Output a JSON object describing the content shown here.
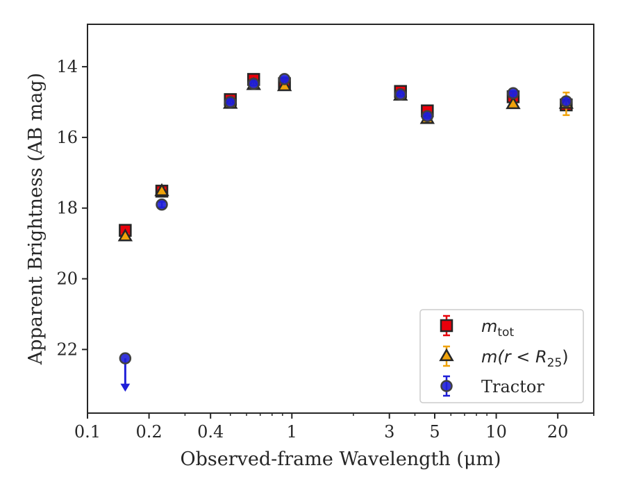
{
  "chart_data": {
    "type": "scatter",
    "xlabel": "Observed-frame Wavelength (μm)",
    "ylabel": "Apparent Brightness (AB mag)",
    "xscale": "log",
    "xlim": [
      0.1,
      30
    ],
    "ylim": [
      23.8,
      12.8
    ],
    "y_inverted": true,
    "x_ticks": [
      0.1,
      0.2,
      0.4,
      1,
      3,
      5,
      10,
      20
    ],
    "x_tick_labels": [
      "0.1",
      "0.2",
      "0.4",
      "1",
      "3",
      "5",
      "10",
      "20"
    ],
    "y_ticks": [
      14,
      16,
      18,
      20,
      22
    ],
    "y_tick_labels": [
      "14",
      "16",
      "18",
      "20",
      "22"
    ],
    "grid": false,
    "legend_position": "lower-right",
    "series": [
      {
        "name": "m_tot",
        "legend_text": "m",
        "legend_sub": "tot",
        "marker": "square",
        "color": "#e8000b",
        "points": [
          {
            "x": 0.153,
            "y": 18.63,
            "err": 0.1
          },
          {
            "x": 0.231,
            "y": 17.52,
            "err": 0.1
          },
          {
            "x": 0.5,
            "y": 14.93,
            "err": 0.06
          },
          {
            "x": 0.65,
            "y": 14.36,
            "err": 0.06
          },
          {
            "x": 0.92,
            "y": 14.48,
            "err": 0.06
          },
          {
            "x": 3.4,
            "y": 14.7,
            "err": 0.06
          },
          {
            "x": 4.6,
            "y": 15.25,
            "err": 0.06
          },
          {
            "x": 12.1,
            "y": 14.85,
            "err": 0.08
          },
          {
            "x": 22.0,
            "y": 15.08,
            "err": 0.1
          }
        ]
      },
      {
        "name": "m(r < R25)",
        "legend_text": "m(r < R",
        "legend_sub": "25",
        "legend_tail": ")",
        "marker": "triangle",
        "color": "#f0a30a",
        "points": [
          {
            "x": 0.153,
            "y": 18.8,
            "err": 0.06
          },
          {
            "x": 0.231,
            "y": 17.52,
            "err": 0.06
          },
          {
            "x": 0.5,
            "y": 15.05,
            "err": 0.05
          },
          {
            "x": 0.65,
            "y": 14.52,
            "err": 0.05
          },
          {
            "x": 0.92,
            "y": 14.55,
            "err": 0.05
          },
          {
            "x": 3.4,
            "y": 14.82,
            "err": 0.05
          },
          {
            "x": 4.6,
            "y": 15.48,
            "err": 0.05
          },
          {
            "x": 12.1,
            "y": 15.06,
            "err": 0.05
          },
          {
            "x": 22.0,
            "y": 15.05,
            "err": 0.32
          }
        ]
      },
      {
        "name": "Tractor",
        "legend_text": "Tractor",
        "marker": "circle",
        "color": "#1f1fd8",
        "points": [
          {
            "x": 0.153,
            "y": 22.25,
            "upper_limit": true
          },
          {
            "x": 0.231,
            "y": 17.9,
            "err": 0.08
          },
          {
            "x": 0.5,
            "y": 15.0,
            "err": 0.05
          },
          {
            "x": 0.65,
            "y": 14.48,
            "err": 0.05
          },
          {
            "x": 0.92,
            "y": 14.35,
            "err": 0.05
          },
          {
            "x": 3.4,
            "y": 14.78,
            "err": 0.05
          },
          {
            "x": 4.6,
            "y": 15.4,
            "err": 0.05
          },
          {
            "x": 12.1,
            "y": 14.75,
            "err": 0.06
          },
          {
            "x": 22.0,
            "y": 14.98,
            "err": 0.12
          }
        ]
      }
    ]
  }
}
